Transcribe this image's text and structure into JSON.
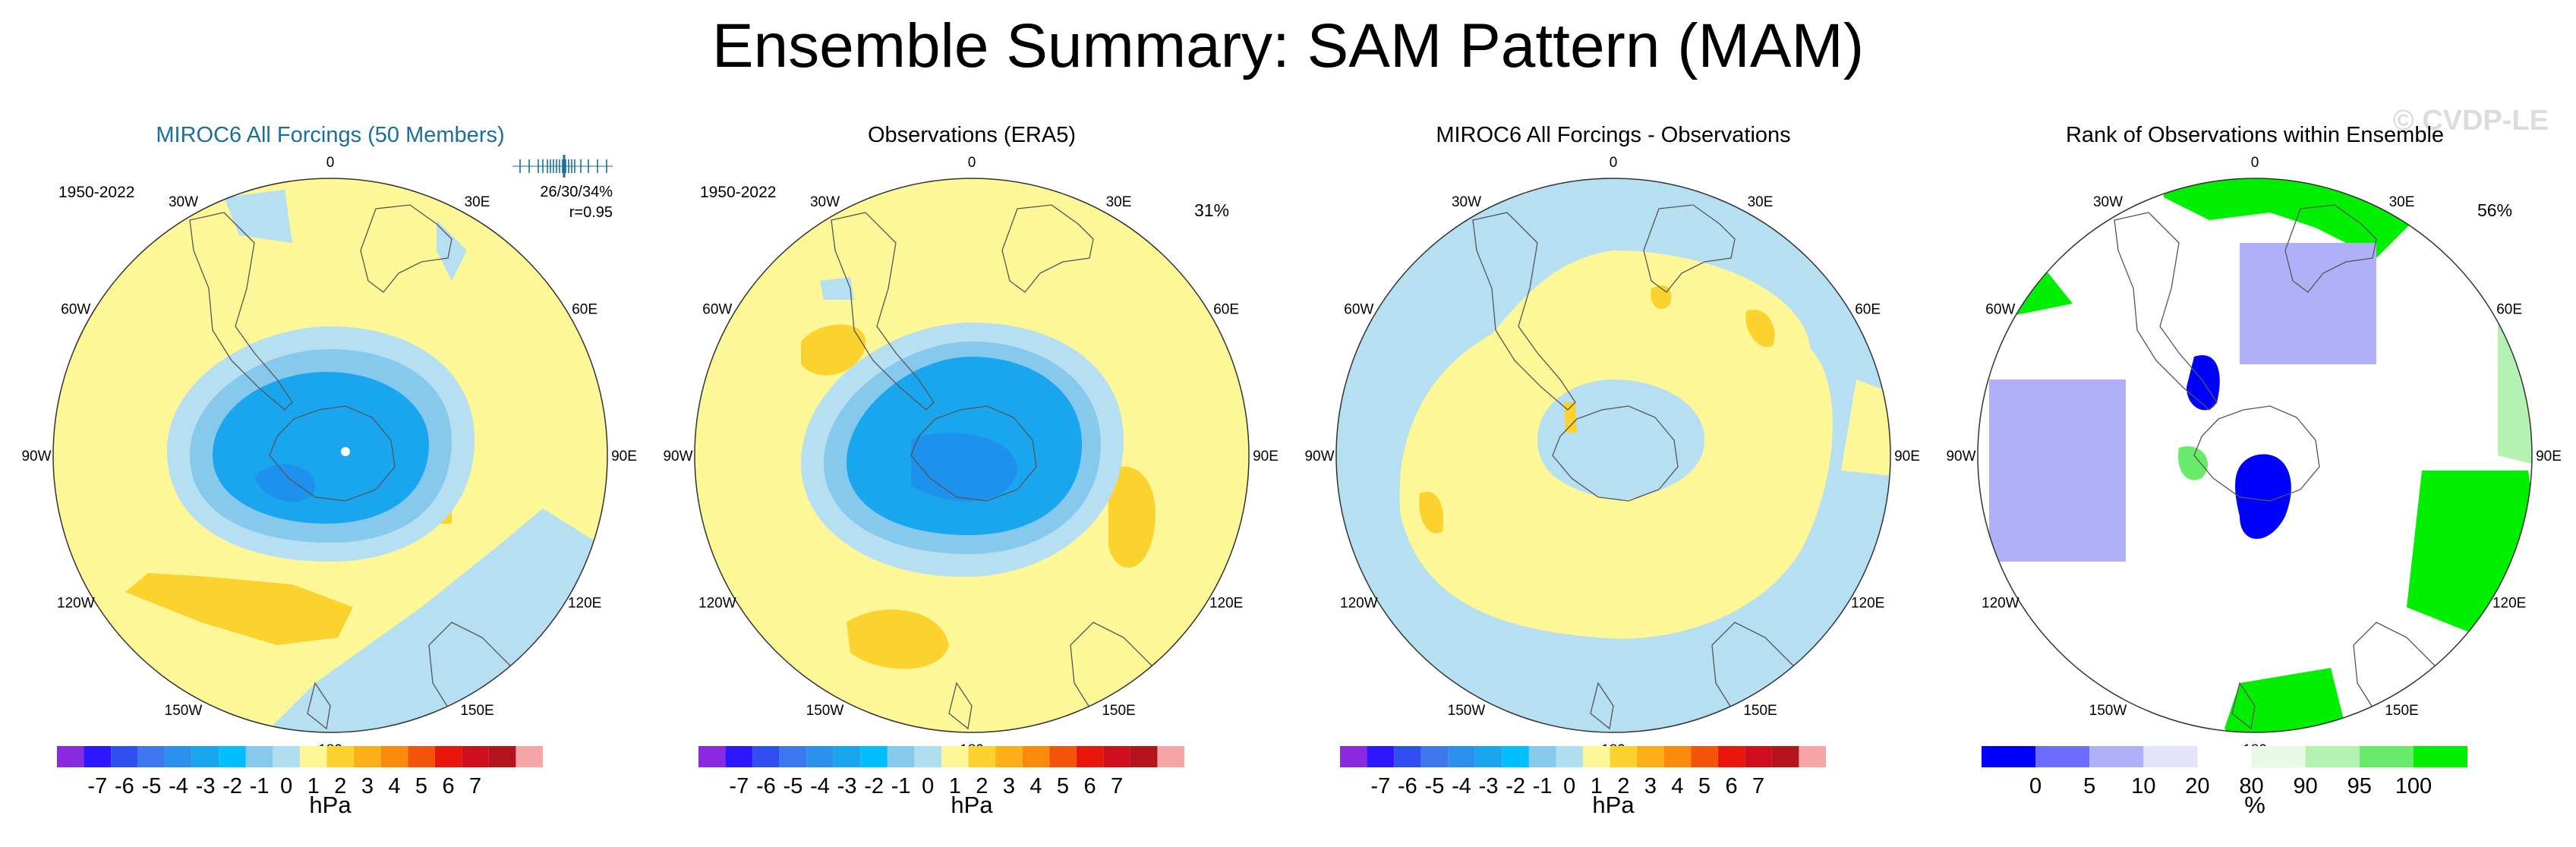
{
  "title": "Ensemble Summary: SAM Pattern (MAM)",
  "watermark": "© CVDP-LE",
  "panels": [
    {
      "title": "MIROC6 All Forcings (50 Members)",
      "period": "1950-2022",
      "stats_line1": "26/30/34%",
      "stats_line2": "r=0.95",
      "unit": "hPa"
    },
    {
      "title": "Observations (ERA5)",
      "period": "1950-2022",
      "percent": "31%",
      "unit": "hPa"
    },
    {
      "title": "MIROC6 All Forcings - Observations",
      "unit": "hPa"
    },
    {
      "title": "Rank of Observations within Ensemble",
      "percent": "56%",
      "unit": "%"
    }
  ],
  "lon_labels": [
    "0",
    "30E",
    "60E",
    "90E",
    "120E",
    "150E",
    "180",
    "150W",
    "120W",
    "90W",
    "60W",
    "30W"
  ],
  "chart_data": [
    {
      "type": "heatmap",
      "projection": "south-polar-stereographic",
      "title": "MIROC6 All Forcings (50 Members)",
      "period": "1950-2022",
      "variance_explained_pct": [
        26,
        30,
        34
      ],
      "pattern_correlation": 0.95,
      "units": "hPa",
      "features": [
        {
          "region": "Antarctic interior / polar cap",
          "value_range_hPa": [
            -4,
            -3
          ]
        },
        {
          "region": "Southern Ocean ring",
          "value_range_hPa": [
            -2,
            -1
          ]
        },
        {
          "region": "Mid-latitudes",
          "value_range_hPa": [
            0,
            1
          ]
        },
        {
          "region": "South Pacific near 120W",
          "value_range_hPa": [
            1,
            2
          ]
        },
        {
          "region": "Australia / Indian Ocean near 120E",
          "value_range_hPa": [
            -1,
            0
          ]
        }
      ]
    },
    {
      "type": "heatmap",
      "projection": "south-polar-stereographic",
      "title": "Observations (ERA5)",
      "period": "1950-2022",
      "variance_explained_pct": 31,
      "units": "hPa",
      "features": [
        {
          "region": "Antarctic interior / polar cap",
          "value_range_hPa": [
            -4,
            -3
          ]
        },
        {
          "region": "Southern Ocean ring",
          "value_range_hPa": [
            -2,
            -1
          ]
        },
        {
          "region": "Mid-latitudes",
          "value_range_hPa": [
            0,
            1
          ]
        },
        {
          "region": "South Indian Ocean near 90E",
          "value_range_hPa": [
            1,
            2
          ]
        },
        {
          "region": "South Pacific near 150W",
          "value_range_hPa": [
            1,
            2
          ]
        }
      ]
    },
    {
      "type": "heatmap",
      "projection": "south-polar-stereographic",
      "title": "MIROC6 All Forcings - Observations",
      "units": "hPa",
      "features": [
        {
          "region": "Antarctica and outer ocean",
          "value_range_hPa": [
            -1,
            0
          ]
        },
        {
          "region": "Southern Ocean ring",
          "value_range_hPa": [
            0,
            1
          ]
        },
        {
          "region": "Small patches",
          "value_range_hPa": [
            1,
            2
          ]
        }
      ]
    },
    {
      "type": "heatmap",
      "projection": "south-polar-stereographic",
      "title": "Rank of Observations within Ensemble",
      "percent_area": 56,
      "units": "%",
      "features": [
        {
          "region": "Near 60W to 30E",
          "rank_pct": ">95"
        },
        {
          "region": "Near 100E to 130E",
          "rank_pct": ">95"
        },
        {
          "region": "Near 30E to 60E (mid-latitude)",
          "rank_pct": "<5"
        },
        {
          "region": "Near 110W to 90W",
          "rank_pct": "<5"
        },
        {
          "region": "Near 150E (Ross Sea sector)",
          "rank_pct": "<5"
        }
      ]
    }
  ],
  "colorbar_hpa": {
    "labels": [
      "-7",
      "-6",
      "-5",
      "-4",
      "-3",
      "-2",
      "-1",
      "0",
      "1",
      "2",
      "3",
      "4",
      "5",
      "6",
      "7"
    ],
    "colors": [
      "#8a2be2",
      "#2e17ff",
      "#2f4ff0",
      "#3b77ee",
      "#2b90ec",
      "#1aa6ef",
      "#00bfff",
      "#87c9ec",
      "#b0dff2",
      "#fdf797",
      "#fbd22e",
      "#fbaf17",
      "#f98a0b",
      "#f3530b",
      "#e8160b",
      "#cf0f1e",
      "#b2131c",
      "#f7a6a6"
    ]
  },
  "colorbar_rank": {
    "labels": [
      "0",
      "5",
      "10",
      "20",
      "80",
      "90",
      "95",
      "100"
    ],
    "colors": [
      "#0000ff",
      "#6b6bff",
      "#b0b0f8",
      "#e3e3fb",
      "#ffffff",
      "#e6fae6",
      "#b4f2b4",
      "#6aea6a",
      "#00ee00"
    ]
  }
}
